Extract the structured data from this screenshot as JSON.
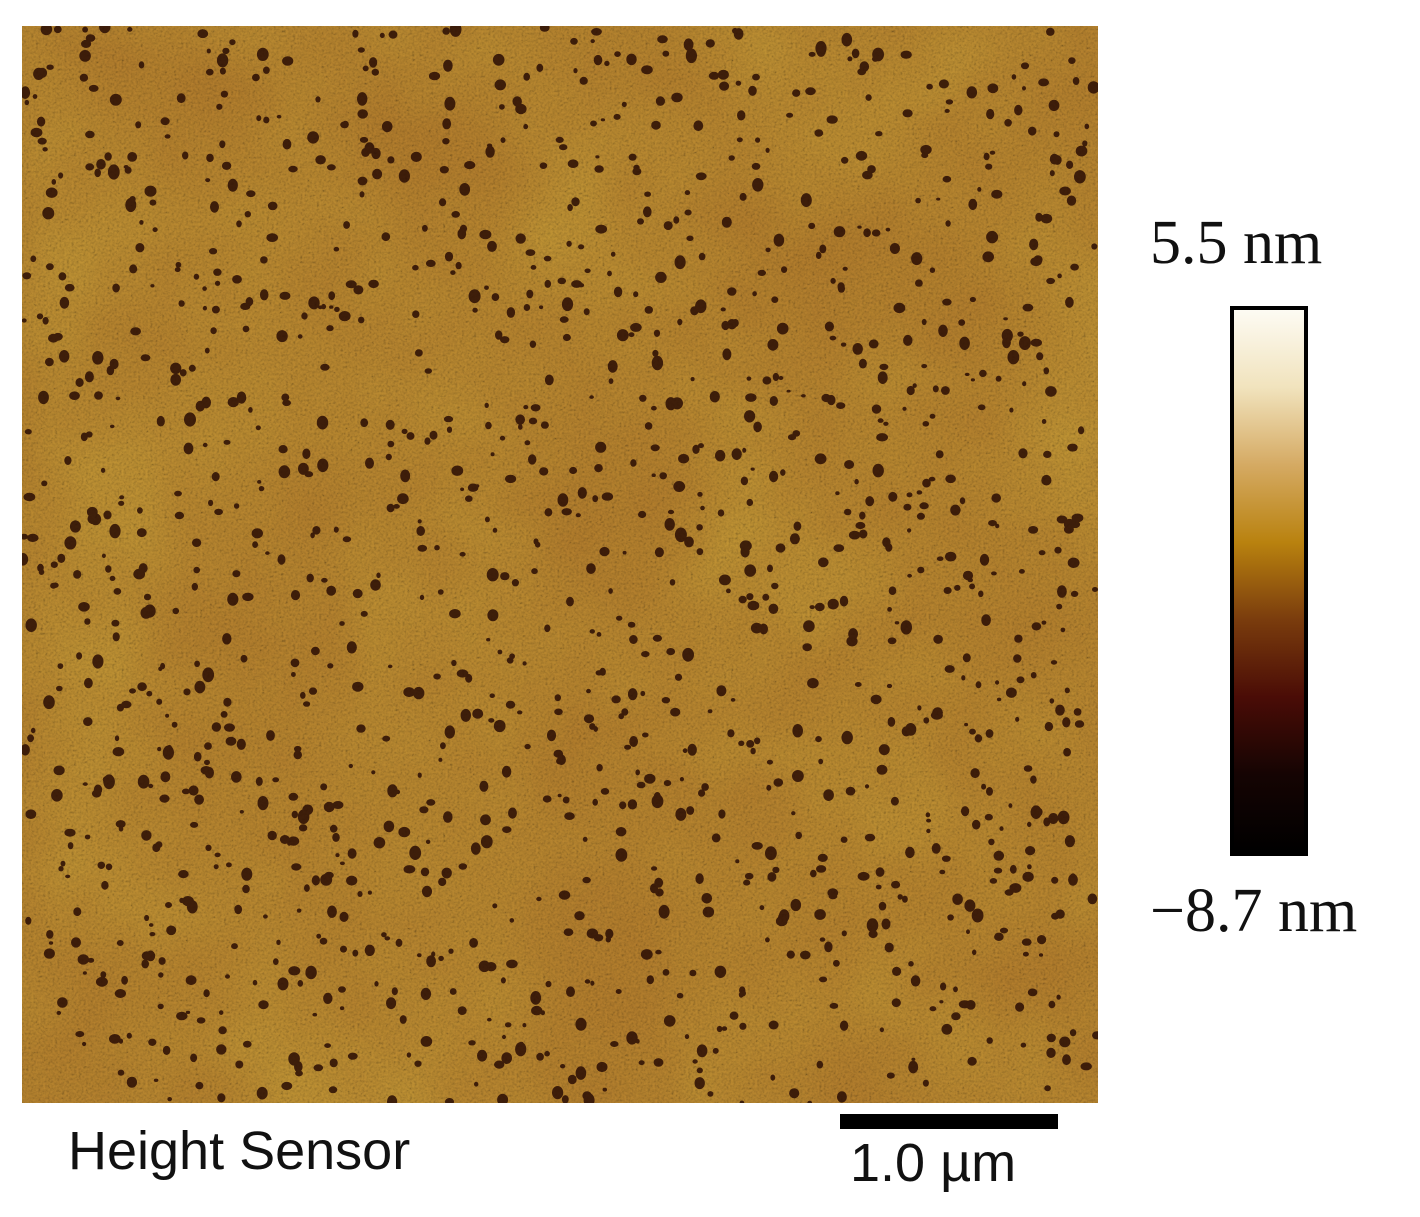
{
  "image": {
    "channel_label": "Height Sensor",
    "scale_bar_label": "1.0 µm",
    "colorbar": {
      "max_label": "5.5 nm",
      "min_label": "−8.7 nm",
      "colors": [
        "#fdfbf3",
        "#f1e3bd",
        "#d5aa63",
        "#b9820f",
        "#7a3c0d",
        "#4a0c06",
        "#150403",
        "#000000"
      ]
    }
  }
}
